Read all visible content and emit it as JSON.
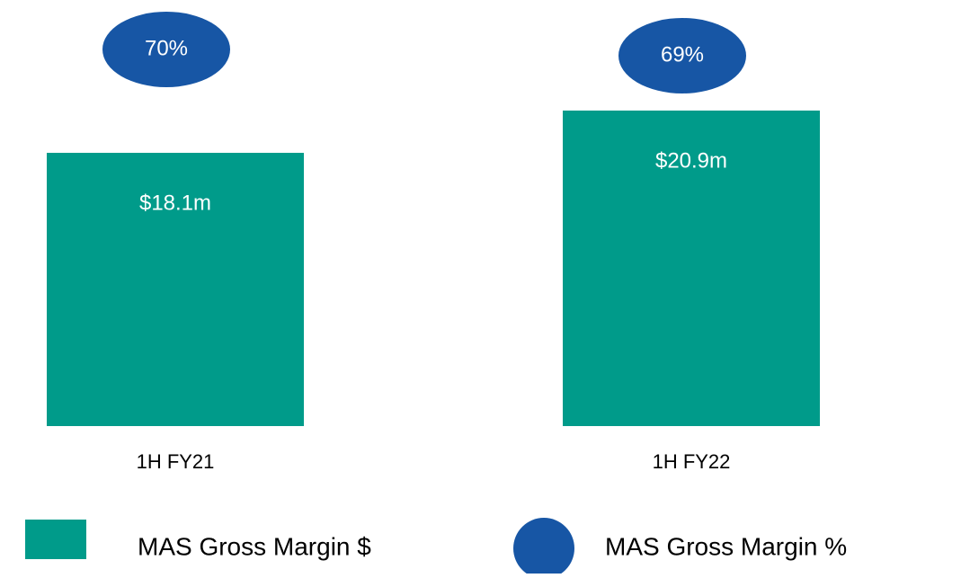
{
  "chart_data": {
    "type": "bar",
    "categories": [
      "1H FY21",
      "1H FY22"
    ],
    "series": [
      {
        "name": "MAS Gross Margin $",
        "color": "#009b8a",
        "marker": "bar",
        "values": [
          18.1,
          20.9
        ],
        "value_labels": [
          "$18.1m",
          "$20.9m"
        ]
      },
      {
        "name": "MAS Gross Margin %",
        "color": "#1756a5",
        "marker": "ellipse",
        "values": [
          70,
          69
        ],
        "value_labels": [
          "70%",
          "69%"
        ]
      }
    ]
  }
}
